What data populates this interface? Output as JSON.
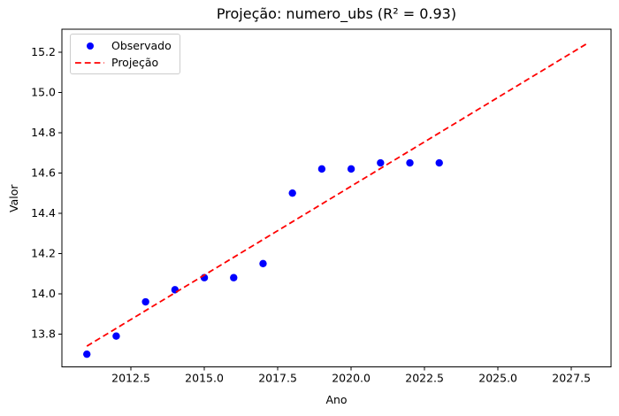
{
  "chart_data": {
    "type": "scatter",
    "title": "Projeção: numero_ubs (R² = 0.93)",
    "xlabel": "Ano",
    "ylabel": "Valor",
    "xlim": [
      2010.15,
      2028.85
    ],
    "ylim": [
      13.637,
      15.314
    ],
    "x_ticks": [
      2012.5,
      2015.0,
      2017.5,
      2020.0,
      2022.5,
      2025.0,
      2027.5
    ],
    "y_ticks": [
      13.8,
      14.0,
      14.2,
      14.4,
      14.6,
      14.8,
      15.0,
      15.2
    ],
    "grid": false,
    "legend_position": "upper-left",
    "background_color": "#ffffff",
    "spine_color": "#000000",
    "series": [
      {
        "name": "Observado",
        "type": "scatter",
        "marker": "circle",
        "color": "#0000ff",
        "x": [
          2011,
          2012,
          2013,
          2014,
          2015,
          2016,
          2017,
          2018,
          2019,
          2020,
          2021,
          2022,
          2023
        ],
        "y": [
          13.7,
          13.79,
          13.96,
          14.02,
          14.08,
          14.08,
          14.15,
          14.5,
          14.62,
          14.62,
          14.65,
          14.65,
          14.65
        ]
      },
      {
        "name": "Projeção",
        "type": "line",
        "line_style": "dashed",
        "color": "#ff0000",
        "x": [
          2011,
          2028
        ],
        "y": [
          13.74,
          15.24
        ]
      }
    ]
  }
}
